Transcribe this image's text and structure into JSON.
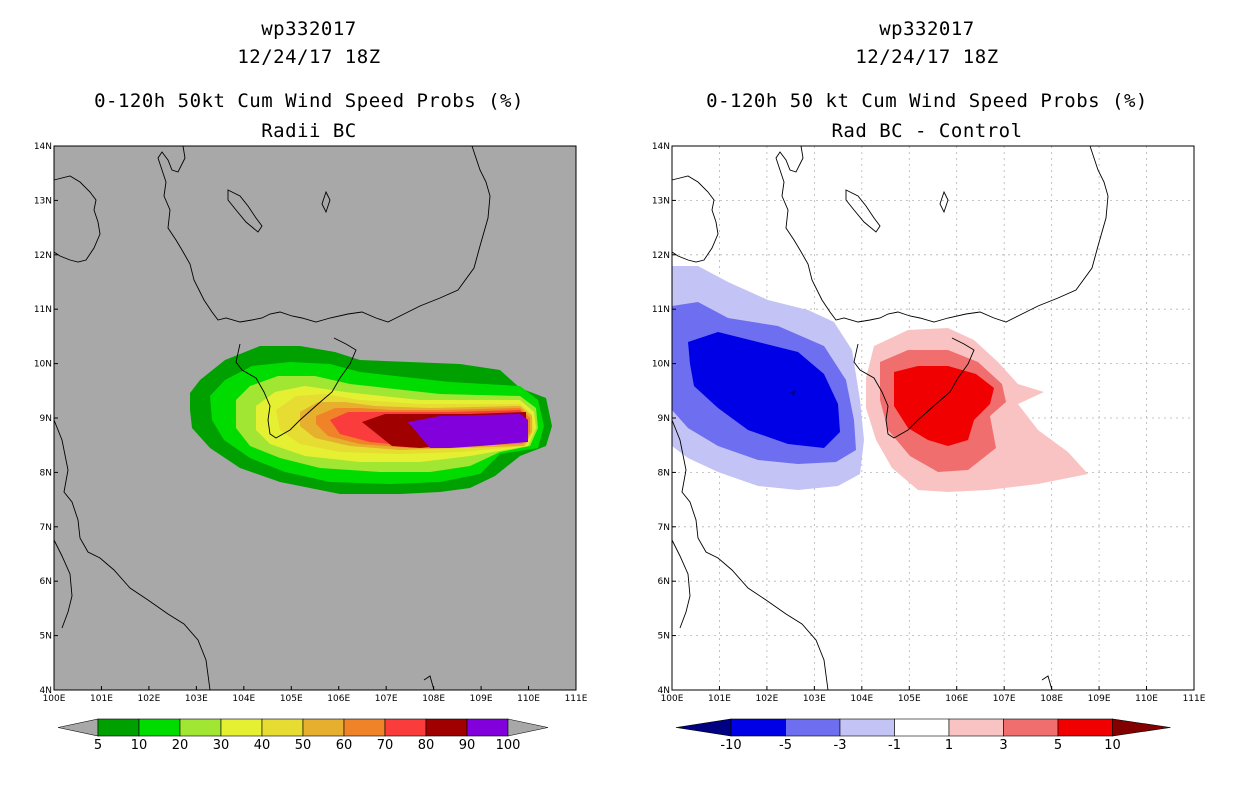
{
  "left": {
    "title_storm": "wp332017",
    "title_time": "12/24/17 18Z",
    "title_product": "0-120h 50kt Cum Wind Speed Probs (%)",
    "title_sub": "Radii BC",
    "colorbar_labels": [
      "5",
      "10",
      "20",
      "30",
      "40",
      "50",
      "60",
      "70",
      "80",
      "90",
      "100"
    ],
    "colors": {
      "background": "#a8a8a8",
      "c5": "#00a000",
      "c10": "#00dc00",
      "c20": "#a0e632",
      "c30": "#e6f032",
      "c40": "#e6dc32",
      "c50": "#e6af2d",
      "c60": "#f08228",
      "c70": "#fa3c3c",
      "c80": "#a00000",
      "c90": "#8200dc"
    }
  },
  "right": {
    "title_storm": "wp332017",
    "title_time": "12/24/17 18Z",
    "title_product": "0-120h 50 kt Cum Wind Speed Probs (%)",
    "title_sub": "Rad BC - Control",
    "colorbar_labels": [
      "-10",
      "-5",
      "-3",
      "-1",
      "1",
      "3",
      "5",
      "10"
    ],
    "colors": {
      "n10": "#000082",
      "n5": "#0000e6",
      "n3": "#6e6ef0",
      "n1": "#c3c3f5",
      "zero": "#ffffff",
      "p1": "#fac3c3",
      "p3": "#f06e6e",
      "p5": "#f00000",
      "p10": "#820000"
    }
  },
  "axes": {
    "lon_labels": [
      "100E",
      "101E",
      "102E",
      "103E",
      "104E",
      "105E",
      "106E",
      "107E",
      "108E",
      "109E",
      "110E",
      "111E"
    ],
    "lat_labels": [
      "4N",
      "5N",
      "6N",
      "7N",
      "8N",
      "9N",
      "10N",
      "11N",
      "12N",
      "13N",
      "14N"
    ]
  }
}
